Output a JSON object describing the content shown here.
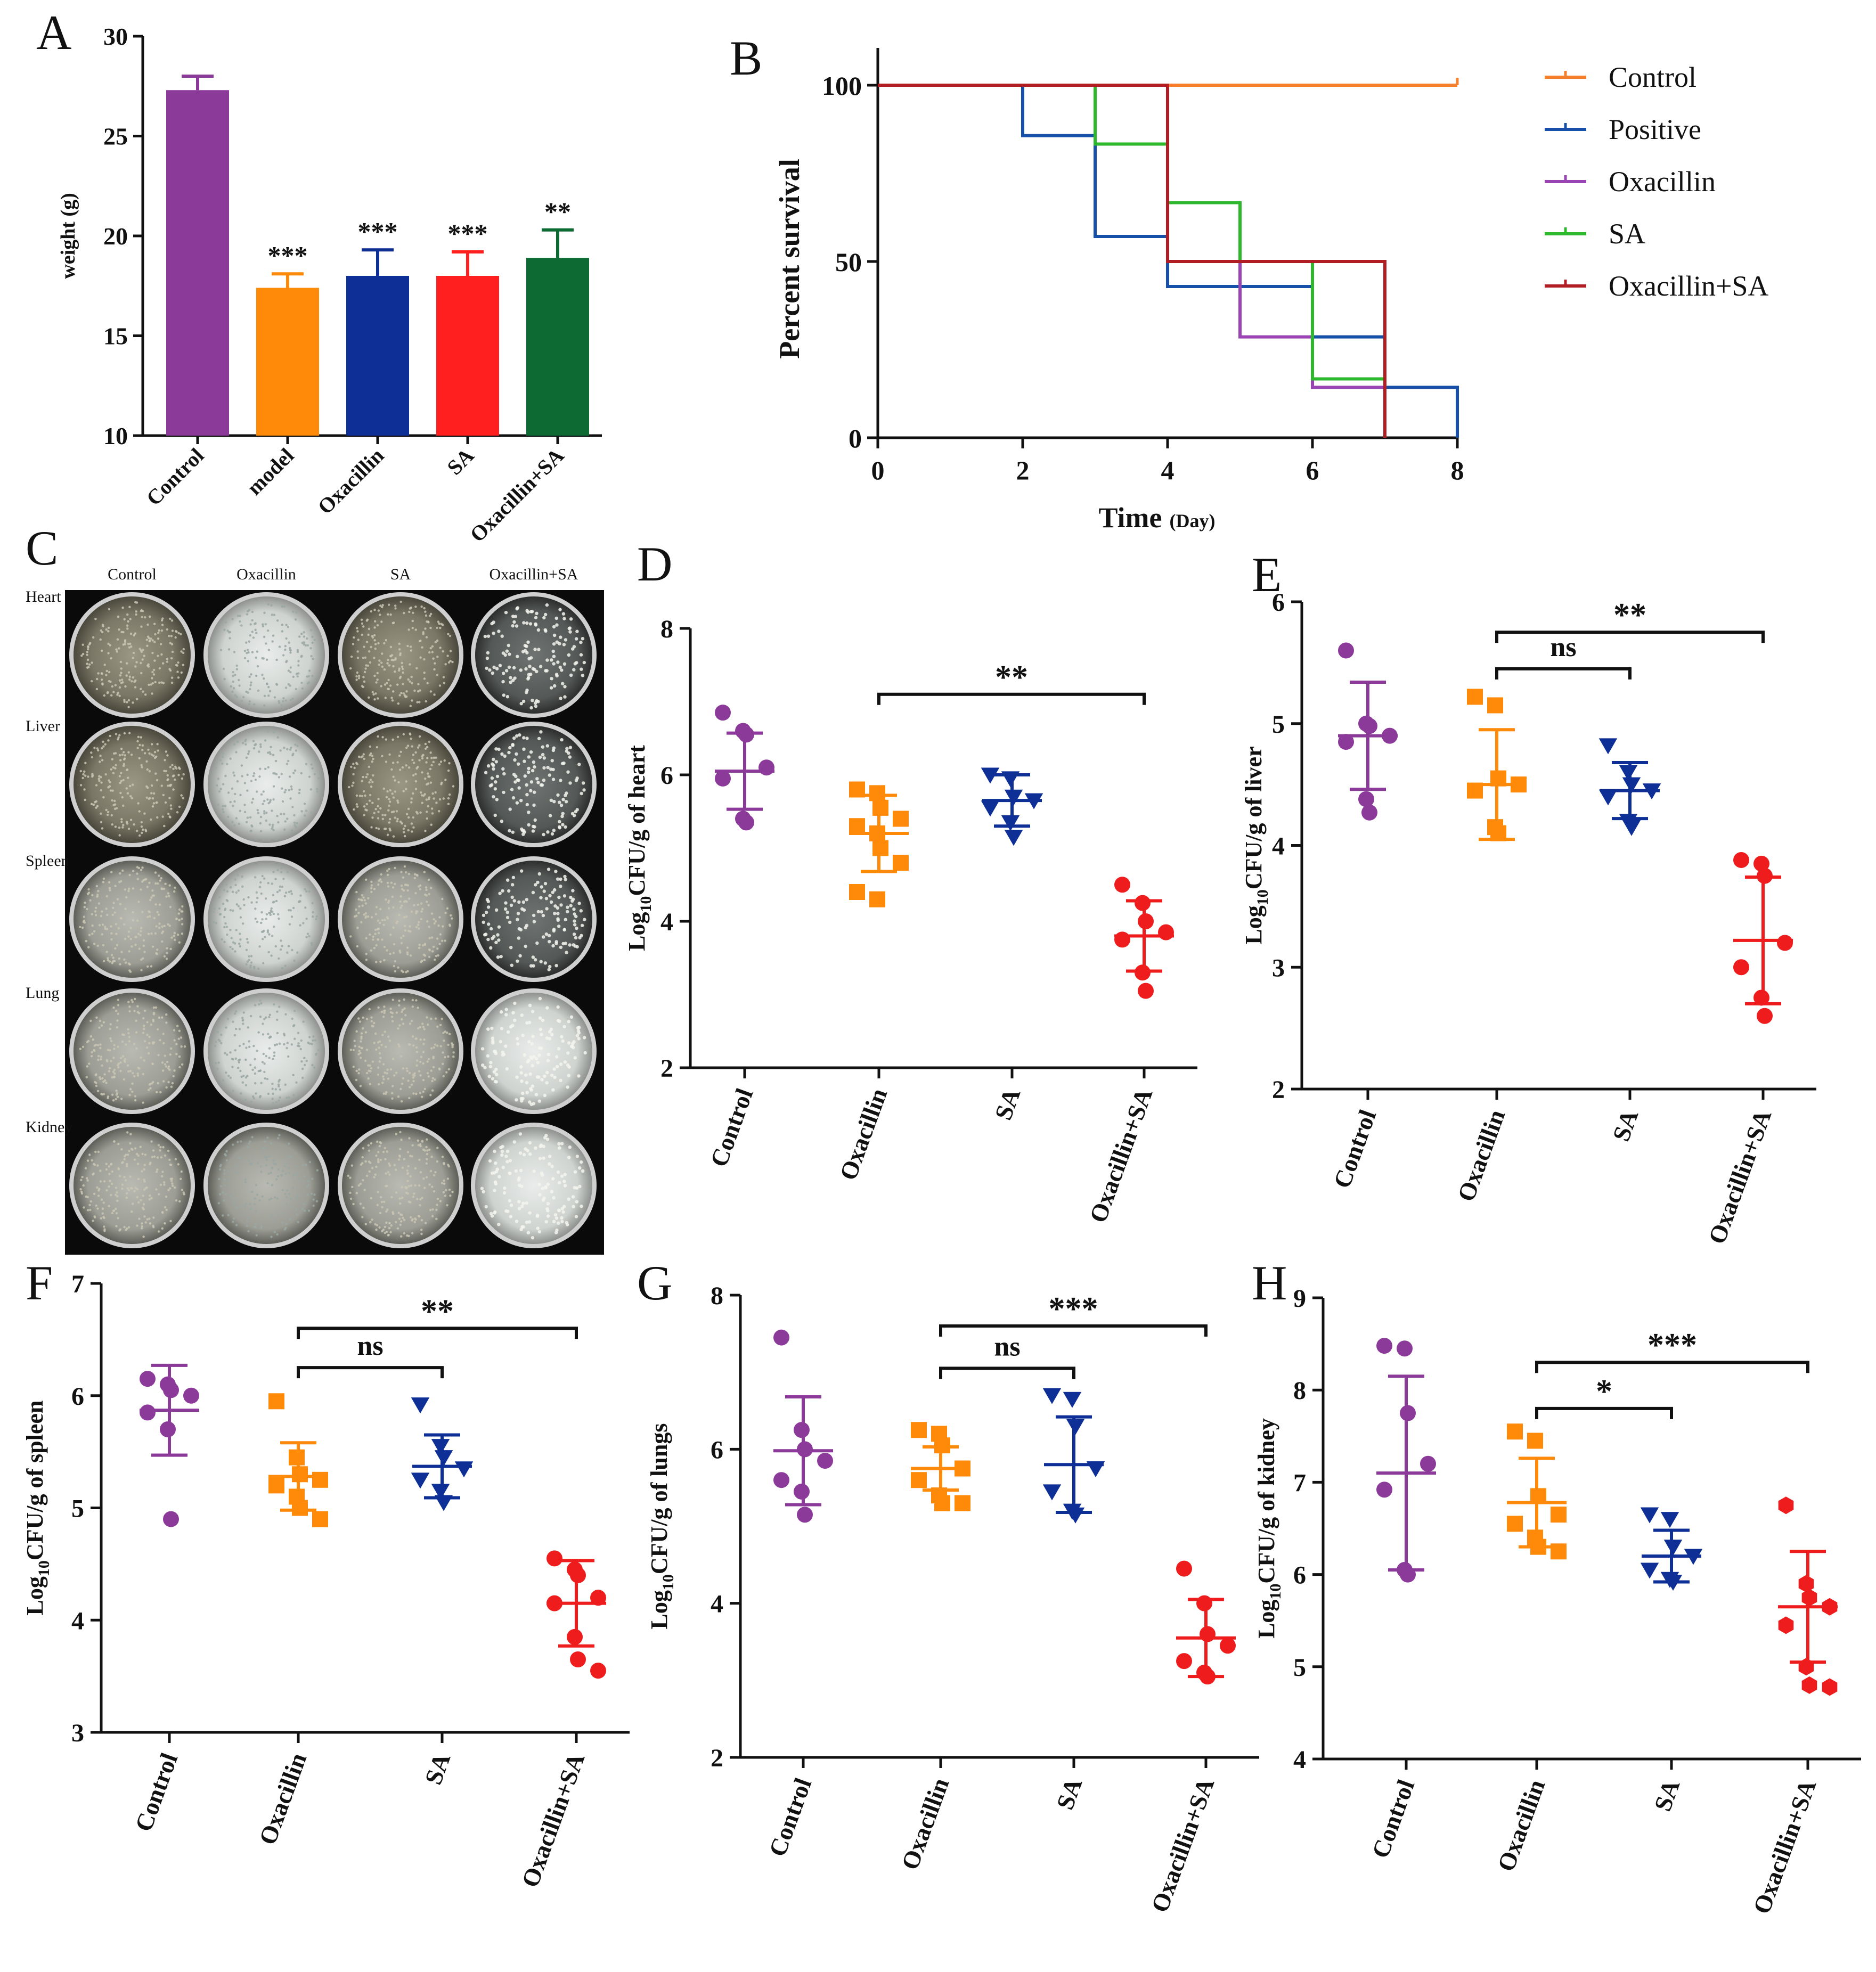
{
  "colors": {
    "control": "#8B3A9A",
    "model": "#FF8A0A",
    "oxacillin_bar": "#0E2F96",
    "sa_bar": "#FF1F1F",
    "combo_bar": "#0C6A32",
    "surv_control": "#F57F2A",
    "surv_positive": "#1750A8",
    "surv_oxacillin": "#9B44B4",
    "surv_sa": "#2DB82D",
    "surv_combo": "#B01E24",
    "dot_control": "#8B3A9A",
    "dot_oxacillin": "#FF8A0A",
    "dot_sa": "#0E2F96",
    "dot_combo": "#EE1C1C"
  },
  "chart_data": [
    {
      "panel": "A",
      "type": "bar",
      "ylabel": "weight (g)",
      "ylim": [
        10,
        30
      ],
      "yticks": [
        10,
        15,
        20,
        25,
        30
      ],
      "categories": [
        "Control",
        "model",
        "Oxacillin",
        "SA",
        "Oxacillin+SA"
      ],
      "values": [
        27.3,
        17.4,
        18.0,
        18.0,
        18.9
      ],
      "errors": [
        0.7,
        0.7,
        1.3,
        1.2,
        1.4
      ],
      "significance": [
        "",
        "***",
        "***",
        "***",
        "**"
      ],
      "bar_colors": [
        "#8B3A9A",
        "#FF8A0A",
        "#0E2F96",
        "#FF1F1F",
        "#0C6A32"
      ]
    },
    {
      "panel": "B",
      "type": "line",
      "xlabel": "Time",
      "xlabel_unit": "(Day)",
      "ylabel": "Percent survival",
      "xlim": [
        0,
        8
      ],
      "ylim": [
        0,
        100
      ],
      "xticks": [
        0,
        2,
        4,
        6,
        8
      ],
      "yticks": [
        0,
        50,
        100
      ],
      "series": [
        {
          "name": "Control",
          "color": "#F57F2A",
          "points": [
            [
              0,
              100
            ],
            [
              8,
              100
            ]
          ]
        },
        {
          "name": "Positive",
          "color": "#1750A8",
          "points": [
            [
              0,
              100
            ],
            [
              2,
              100
            ],
            [
              2,
              85.7
            ],
            [
              3,
              85.7
            ],
            [
              3,
              57.1
            ],
            [
              4,
              57.1
            ],
            [
              4,
              42.9
            ],
            [
              6,
              42.9
            ],
            [
              6,
              28.6
            ],
            [
              7,
              28.6
            ],
            [
              7,
              14.3
            ],
            [
              8,
              14.3
            ],
            [
              8,
              0
            ]
          ]
        },
        {
          "name": "Oxacillin",
          "color": "#9B44B4",
          "points": [
            [
              0,
              100
            ],
            [
              4,
              100
            ],
            [
              4,
              50
            ],
            [
              5,
              50
            ],
            [
              5,
              28.6
            ],
            [
              6,
              28.6
            ],
            [
              6,
              14.3
            ],
            [
              7,
              14.3
            ],
            [
              7,
              0
            ]
          ]
        },
        {
          "name": "SA",
          "color": "#2DB82D",
          "points": [
            [
              0,
              100
            ],
            [
              3,
              100
            ],
            [
              3,
              83.3
            ],
            [
              4,
              83.3
            ],
            [
              4,
              66.7
            ],
            [
              5,
              66.7
            ],
            [
              5,
              50
            ],
            [
              6,
              50
            ],
            [
              6,
              16.7
            ],
            [
              7,
              16.7
            ],
            [
              7,
              0
            ]
          ]
        },
        {
          "name": "Oxacillin+SA",
          "color": "#B01E24",
          "points": [
            [
              0,
              100
            ],
            [
              4,
              100
            ],
            [
              4,
              50
            ],
            [
              7,
              50
            ],
            [
              7,
              0
            ]
          ]
        }
      ]
    },
    {
      "panel": "D",
      "type": "scatter",
      "ylabel_main": "Log",
      "ylabel_sub": "10",
      "ylabel_rest": "CFU/g of heart",
      "ylim": [
        2,
        8
      ],
      "yticks": [
        2,
        4,
        6,
        8
      ],
      "categories": [
        "Control",
        "Oxacillin",
        "SA",
        "Oxacillin+SA"
      ],
      "groups": [
        {
          "mean": 6.05,
          "sd": 0.52,
          "marker": "circle",
          "points": [
            6.85,
            6.6,
            6.55,
            6.1,
            5.95,
            5.4,
            5.35
          ]
        },
        {
          "mean": 5.2,
          "sd": 0.52,
          "marker": "square",
          "points": [
            5.8,
            5.75,
            5.55,
            5.4,
            5.3,
            5.2,
            5.0,
            4.8,
            4.4,
            4.3
          ]
        },
        {
          "mean": 5.65,
          "sd": 0.35,
          "marker": "triangle-down",
          "points": [
            6.0,
            5.95,
            5.7,
            5.65,
            5.55,
            5.35,
            5.15
          ]
        },
        {
          "mean": 3.8,
          "sd": 0.48,
          "marker": "circle",
          "points": [
            4.5,
            4.25,
            4.0,
            3.85,
            3.75,
            3.3,
            3.05
          ]
        }
      ],
      "comparisons": [
        {
          "from": 1,
          "to": 3,
          "label": "**",
          "y": 7.1
        }
      ]
    },
    {
      "panel": "E",
      "type": "scatter",
      "ylabel_main": "Log",
      "ylabel_sub": "10",
      "ylabel_rest": "CFU/g of liver",
      "ylim": [
        2,
        6
      ],
      "yticks": [
        2,
        3,
        4,
        5,
        6
      ],
      "categories": [
        "Control",
        "Oxacillin",
        "SA",
        "Oxacillin+SA"
      ],
      "groups": [
        {
          "mean": 4.9,
          "sd": 0.44,
          "marker": "circle",
          "points": [
            5.6,
            5.0,
            4.98,
            4.9,
            4.85,
            4.38,
            4.27
          ]
        },
        {
          "mean": 4.5,
          "sd": 0.45,
          "marker": "square",
          "points": [
            5.22,
            5.15,
            4.55,
            4.5,
            4.45,
            4.15,
            4.1
          ]
        },
        {
          "mean": 4.45,
          "sd": 0.23,
          "marker": "triangle-down",
          "points": [
            4.82,
            4.6,
            4.5,
            4.45,
            4.4,
            4.2,
            4.15
          ]
        },
        {
          "mean": 3.22,
          "sd": 0.52,
          "marker": "circle",
          "points": [
            3.88,
            3.85,
            3.75,
            3.2,
            3.0,
            2.75,
            2.6
          ]
        }
      ],
      "comparisons": [
        {
          "from": 1,
          "to": 2,
          "label": "ns",
          "y": 5.45
        },
        {
          "from": 1,
          "to": 3,
          "label": "**",
          "y": 5.75
        }
      ]
    },
    {
      "panel": "F",
      "type": "scatter",
      "ylabel_main": "Log",
      "ylabel_sub": "10",
      "ylabel_rest": "CFU/g of spleen",
      "ylim": [
        3,
        7
      ],
      "yticks": [
        3,
        4,
        5,
        6,
        7
      ],
      "categories": [
        "Control",
        "Oxacillin",
        "SA",
        "Oxacillin+SA"
      ],
      "groups": [
        {
          "mean": 5.87,
          "sd": 0.4,
          "marker": "circle",
          "points": [
            6.15,
            6.1,
            6.05,
            6.0,
            5.85,
            5.7,
            4.9
          ]
        },
        {
          "mean": 5.28,
          "sd": 0.3,
          "marker": "square",
          "points": [
            5.95,
            5.45,
            5.3,
            5.25,
            5.2,
            5.1,
            5.0,
            4.9
          ]
        },
        {
          "mean": 5.37,
          "sd": 0.28,
          "marker": "triangle-down",
          "points": [
            5.92,
            5.55,
            5.45,
            5.35,
            5.25,
            5.15,
            5.05
          ]
        },
        {
          "mean": 4.15,
          "sd": 0.38,
          "marker": "circle",
          "points": [
            4.55,
            4.45,
            4.4,
            4.2,
            4.15,
            3.85,
            3.65,
            3.55
          ]
        }
      ],
      "comparisons": [
        {
          "from": 1,
          "to": 2,
          "label": "ns",
          "y": 6.25
        },
        {
          "from": 1,
          "to": 3,
          "label": "**",
          "y": 6.6
        }
      ]
    },
    {
      "panel": "G",
      "type": "scatter",
      "ylabel_main": "Log",
      "ylabel_sub": "10",
      "ylabel_rest": "CFU/g of lungs",
      "ylim": [
        2,
        8
      ],
      "yticks": [
        2,
        4,
        6,
        8
      ],
      "categories": [
        "Control",
        "Oxacillin",
        "SA",
        "Oxacillin+SA"
      ],
      "groups": [
        {
          "mean": 5.98,
          "sd": 0.7,
          "marker": "circle",
          "points": [
            7.45,
            6.25,
            6.0,
            5.85,
            5.6,
            5.45,
            5.15
          ]
        },
        {
          "mean": 5.75,
          "sd": 0.28,
          "marker": "square",
          "points": [
            6.25,
            6.2,
            6.05,
            5.75,
            5.6,
            5.4,
            5.3,
            5.3
          ]
        },
        {
          "mean": 5.8,
          "sd": 0.62,
          "marker": "triangle-down",
          "points": [
            6.7,
            6.65,
            6.3,
            5.75,
            5.45,
            5.2,
            5.15
          ]
        },
        {
          "mean": 3.55,
          "sd": 0.5,
          "marker": "circle",
          "points": [
            4.45,
            4.0,
            3.6,
            3.45,
            3.25,
            3.1,
            3.05
          ]
        }
      ],
      "comparisons": [
        {
          "from": 1,
          "to": 2,
          "label": "ns",
          "y": 7.05
        },
        {
          "from": 1,
          "to": 3,
          "label": "***",
          "y": 7.6
        }
      ]
    },
    {
      "panel": "H",
      "type": "scatter",
      "ylabel_main": "Log",
      "ylabel_sub": "10",
      "ylabel_rest": "CFU/g of kidney",
      "ylim": [
        4,
        9
      ],
      "yticks": [
        4,
        5,
        6,
        7,
        8,
        9
      ],
      "categories": [
        "Control",
        "Oxacillin",
        "SA",
        "Oxacillin+SA"
      ],
      "groups": [
        {
          "mean": 7.1,
          "sd": 1.05,
          "marker": "circle",
          "points": [
            8.48,
            8.45,
            7.75,
            7.2,
            6.92,
            6.05,
            6.0
          ]
        },
        {
          "mean": 6.78,
          "sd": 0.48,
          "marker": "square",
          "points": [
            7.55,
            7.45,
            6.85,
            6.65,
            6.55,
            6.4,
            6.3,
            6.25
          ]
        },
        {
          "mean": 6.2,
          "sd": 0.28,
          "marker": "triangle-down",
          "points": [
            6.65,
            6.6,
            6.3,
            6.2,
            6.05,
            5.95,
            5.92
          ]
        },
        {
          "mean": 5.65,
          "sd": 0.6,
          "marker": "hexagon",
          "points": [
            6.75,
            5.9,
            5.75,
            5.65,
            5.45,
            5.0,
            4.8,
            4.78
          ]
        }
      ],
      "comparisons": [
        {
          "from": 1,
          "to": 2,
          "label": "*",
          "y": 7.8
        },
        {
          "from": 1,
          "to": 3,
          "label": "***",
          "y": 8.3
        }
      ]
    }
  ],
  "panel_labels": {
    "A": "A",
    "B": "B",
    "C": "C",
    "D": "D",
    "E": "E",
    "F": "F",
    "G": "G",
    "H": "H"
  },
  "photo": {
    "columns": [
      "Control",
      "Oxacillin",
      "SA",
      "Oxacillin+SA"
    ],
    "rows": [
      "Heart",
      "Liver",
      "Spleen",
      "Lung",
      "Kidney"
    ]
  }
}
